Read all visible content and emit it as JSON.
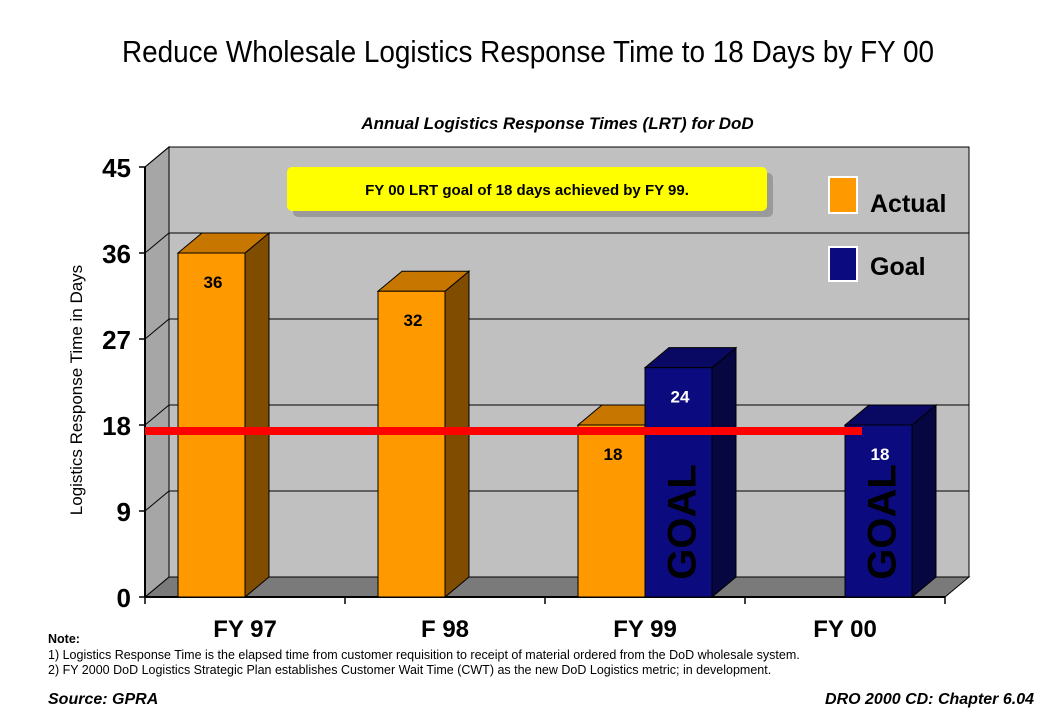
{
  "title": "Reduce Wholesale Logistics Response Time to 18 Days by FY 00",
  "chart_data": {
    "type": "bar",
    "subtitle": "Annual Logistics Response Times (LRT) for DoD",
    "ylabel": "Logistics Response Time in Days",
    "ylim": [
      0,
      45
    ],
    "yticks": [
      "0",
      "9",
      "18",
      "27",
      "36",
      "45"
    ],
    "categories": [
      "FY 97",
      "F 98",
      "FY 99",
      "FY 00"
    ],
    "series": [
      {
        "name": "Actual",
        "color": "#FF9900",
        "values": [
          36,
          32,
          18,
          null
        ],
        "labels": [
          "36",
          "32",
          "18",
          ""
        ]
      },
      {
        "name": "Goal",
        "color": "#0B0B7F",
        "values": [
          null,
          null,
          24,
          18
        ],
        "labels": [
          "",
          "",
          "24",
          "18"
        ]
      }
    ],
    "bar_tags": [
      "",
      "",
      "GOAL",
      "GOAL"
    ],
    "reference_line": {
      "value": 18,
      "color": "#FF0000"
    },
    "annotation": "FY 00 LRT goal of 18 days achieved by FY 99.",
    "legend": {
      "placement": "top-right",
      "items": [
        "Actual",
        "Goal"
      ]
    },
    "grid": true
  },
  "notes": {
    "heading": "Note:",
    "lines": [
      "1)  Logistics Response Time is the elapsed time from customer requisition to receipt of material ordered from the DoD wholesale system.",
      "2)  FY 2000 DoD Logistics Strategic Plan establishes Customer Wait Time (CWT) as the new DoD Logistics metric; in development."
    ]
  },
  "footer": {
    "source": "Source: GPRA",
    "reference": "DRO 2000 CD: Chapter 6.04"
  }
}
